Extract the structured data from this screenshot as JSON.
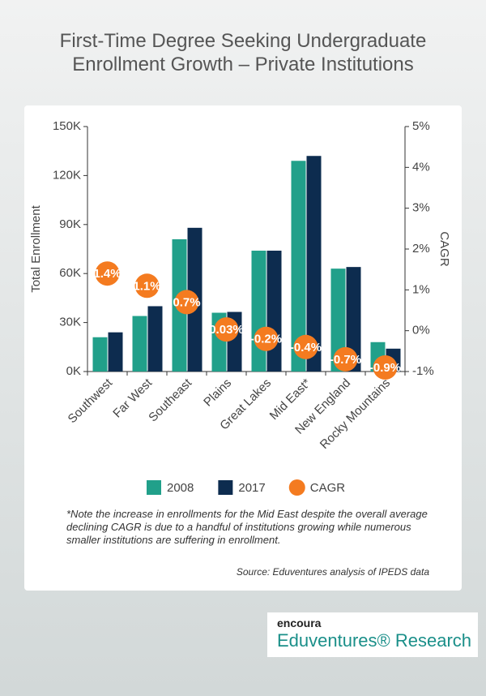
{
  "chart_data": {
    "type": "bar",
    "title": "First-Time Degree Seeking Undergraduate Enrollment Growth – Private Institutions",
    "y_label": "Total Enrollment",
    "y2_label": "CAGR",
    "categories": [
      "Southwest",
      "Far West",
      "Southeast",
      "Plains",
      "Great Lakes",
      "Mid East*",
      "New England",
      "Rocky Mountains"
    ],
    "series": [
      {
        "name": "2008",
        "type": "bar",
        "color": "#21a08a",
        "values": [
          21000,
          34000,
          81000,
          36000,
          74000,
          129000,
          63000,
          18000
        ]
      },
      {
        "name": "2017",
        "type": "bar",
        "color": "#0d2c4f",
        "values": [
          24000,
          40000,
          88000,
          36500,
          74000,
          132000,
          64000,
          14000
        ]
      },
      {
        "name": "CAGR",
        "type": "scatter",
        "axis": "y2",
        "color": "#f47b20",
        "values": [
          1.4,
          1.1,
          0.7,
          0.03,
          -0.2,
          -0.4,
          -0.7,
          -0.9
        ],
        "value_labels": [
          "1.4%",
          "1.1%",
          "0.7%",
          "0.03%",
          "-0.2%",
          "-0.4%",
          "-0.7%",
          "-0.9%"
        ]
      }
    ],
    "ylim": [
      0,
      150000
    ],
    "yticks": [
      {
        "value": 0,
        "label": "0K"
      },
      {
        "value": 30000,
        "label": "30K"
      },
      {
        "value": 60000,
        "label": "60K"
      },
      {
        "value": 90000,
        "label": "90K"
      },
      {
        "value": 120000,
        "label": "120K"
      },
      {
        "value": 150000,
        "label": "150K"
      }
    ],
    "y2lim": [
      -1,
      5
    ],
    "y2ticks": [
      {
        "value": -1,
        "label": "-1%"
      },
      {
        "value": 0,
        "label": "0%"
      },
      {
        "value": 1,
        "label": "1%"
      },
      {
        "value": 2,
        "label": "2%"
      },
      {
        "value": 3,
        "label": "3%"
      },
      {
        "value": 4,
        "label": "4%"
      },
      {
        "value": 5,
        "label": "5%"
      }
    ],
    "grid": false,
    "legend": "bottom"
  },
  "note": "*Note the increase in enrollments for the Mid East despite the overall average declining CAGR is due to a handful of institutions growing while numerous smaller institutions are suffering in enrollment.",
  "source": "Source: Eduventures analysis of IPEDS data",
  "brand": {
    "logo": "encoura",
    "name": "Eduventures® Research"
  }
}
